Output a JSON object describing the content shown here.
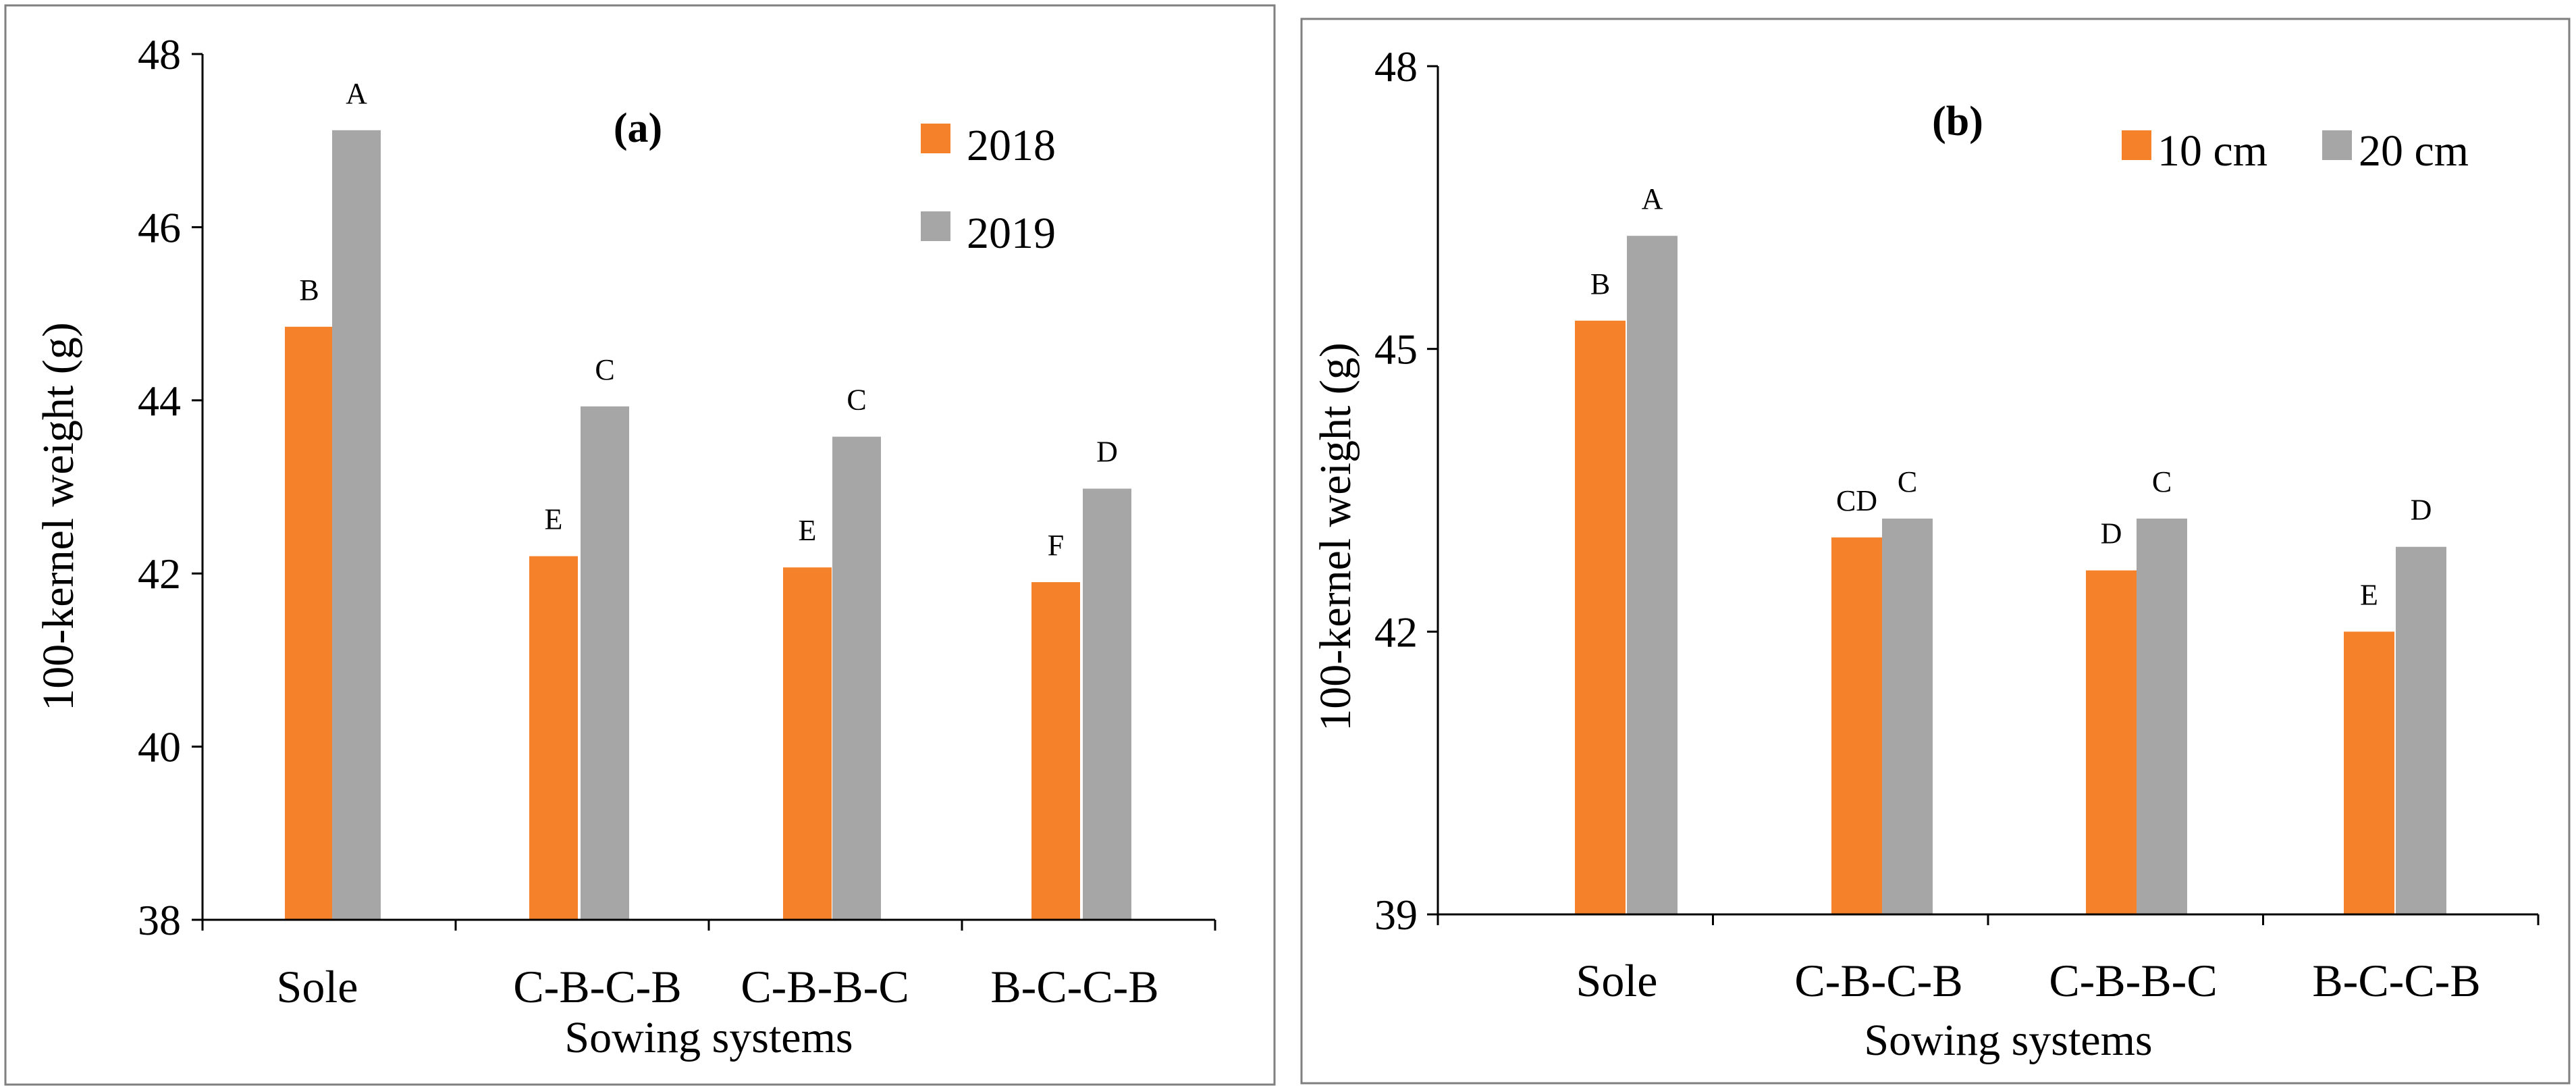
{
  "chart_data": [
    {
      "type": "bar",
      "title": "(a)",
      "xlabel": "Sowing systems",
      "ylabel": "100-kernel weight (g)",
      "ylim": [
        38,
        48
      ],
      "yticks": [
        38,
        40,
        42,
        44,
        46,
        48
      ],
      "categories": [
        "Sole",
        "C-B-C-B",
        "C-B-B-C",
        "B-C-C-B"
      ],
      "series": [
        {
          "name": "2018",
          "color": "#F5822A",
          "values": [
            44.85,
            42.2,
            42.07,
            41.9
          ],
          "labels": [
            "B",
            "E",
            "E",
            "F"
          ]
        },
        {
          "name": "2019",
          "color": "#A6A6A6",
          "values": [
            47.12,
            43.93,
            43.58,
            42.98
          ],
          "labels": [
            "A",
            "C",
            "C",
            "D"
          ]
        }
      ],
      "legend": "top-right, stacked vertically"
    },
    {
      "type": "bar",
      "title": "(b)",
      "xlabel": "Sowing systems",
      "ylabel": "100-kernel weight (g)",
      "ylim": [
        39,
        48
      ],
      "yticks": [
        39,
        42,
        45,
        48
      ],
      "categories": [
        "Sole",
        "C-B-C-B",
        "C-B-B-C",
        "B-C-C-B"
      ],
      "series": [
        {
          "name": "10 cm",
          "color": "#F5822A",
          "values": [
            45.3,
            43.0,
            42.65,
            42.0
          ],
          "labels": [
            "B",
            "CD",
            "D",
            "E"
          ]
        },
        {
          "name": "20 cm",
          "color": "#A6A6A6",
          "values": [
            46.2,
            43.2,
            43.2,
            42.9
          ],
          "labels": [
            "A",
            "C",
            "C",
            "D"
          ]
        }
      ],
      "legend": "top-right, single row"
    }
  ]
}
